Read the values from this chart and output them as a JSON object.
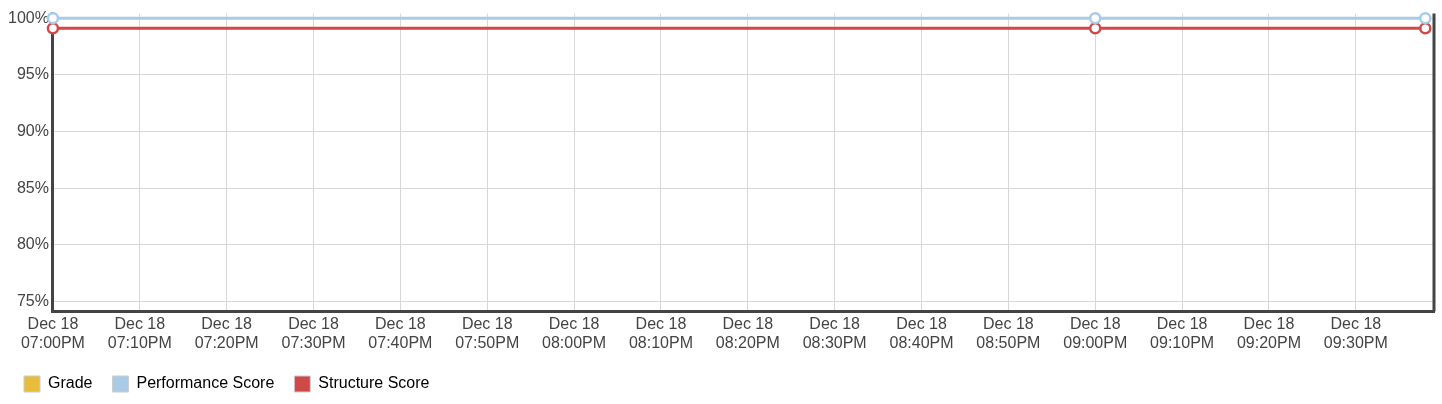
{
  "chart_data": {
    "type": "line",
    "x": [
      "--12-18T19:00",
      "--12-18T21:00",
      "--12-18T21:38"
    ],
    "series": [
      {
        "name": "Grade",
        "color": "#e8bd3a",
        "values": [
          null,
          null,
          null
        ]
      },
      {
        "name": "Performance Score",
        "color": "#a8cbe8",
        "values": [
          100,
          100,
          100
        ]
      },
      {
        "name": "Structure Score",
        "color": "#d04848",
        "values": [
          99.1,
          99.1,
          99.1
        ]
      }
    ],
    "xlim": [
      "--12-18T19:00",
      "--12-18T21:39"
    ],
    "xticks": [
      {
        "value": "--12-18T19:00",
        "label": "Dec 18\n07:00PM"
      },
      {
        "value": "--12-18T19:10",
        "label": "Dec 18\n07:10PM"
      },
      {
        "value": "--12-18T19:20",
        "label": "Dec 18\n07:20PM"
      },
      {
        "value": "--12-18T19:30",
        "label": "Dec 18\n07:30PM"
      },
      {
        "value": "--12-18T19:40",
        "label": "Dec 18\n07:40PM"
      },
      {
        "value": "--12-18T19:50",
        "label": "Dec 18\n07:50PM"
      },
      {
        "value": "--12-18T20:00",
        "label": "Dec 18\n08:00PM"
      },
      {
        "value": "--12-18T20:10",
        "label": "Dec 18\n08:10PM"
      },
      {
        "value": "--12-18T20:20",
        "label": "Dec 18\n08:20PM"
      },
      {
        "value": "--12-18T20:30",
        "label": "Dec 18\n08:30PM"
      },
      {
        "value": "--12-18T20:40",
        "label": "Dec 18\n08:40PM"
      },
      {
        "value": "--12-18T20:50",
        "label": "Dec 18\n08:50PM"
      },
      {
        "value": "--12-18T21:00",
        "label": "Dec 18\n09:00PM"
      },
      {
        "value": "--12-18T21:10",
        "label": "Dec 18\n09:10PM"
      },
      {
        "value": "--12-18T21:20",
        "label": "Dec 18\n09:20PM"
      },
      {
        "value": "--12-18T21:30",
        "label": "Dec 18\n09:30PM"
      }
    ],
    "ylim": [
      74.1,
      100.4
    ],
    "yticks": [
      {
        "value": 75,
        "label": "75%"
      },
      {
        "value": 80,
        "label": "80%"
      },
      {
        "value": 85,
        "label": "85%"
      },
      {
        "value": 90,
        "label": "90%"
      },
      {
        "value": 95,
        "label": "95%"
      },
      {
        "value": 100,
        "label": "100%"
      }
    ],
    "grid": true,
    "legend": "bottom left",
    "marker": "circle",
    "line_style": "solid"
  }
}
